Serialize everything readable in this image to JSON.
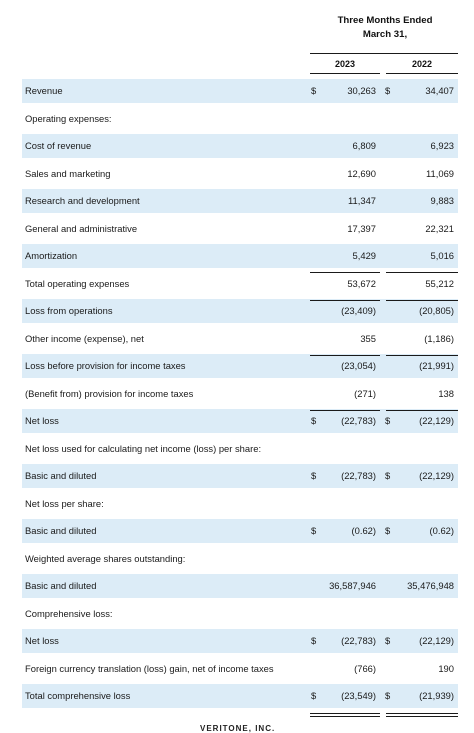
{
  "header": {
    "title_line1": "Three Months Ended",
    "title_line2": "March 31,",
    "year1": "2023",
    "year2": "2022"
  },
  "rows": [
    {
      "label": "Revenue",
      "cur1": "$",
      "v1": "30,263",
      "cur2": "$",
      "v2": "34,407",
      "shaded": true
    },
    {
      "label": "Operating expenses:",
      "cur1": "",
      "v1": "",
      "cur2": "",
      "v2": "",
      "shaded": false
    },
    {
      "label": "Cost of revenue",
      "cur1": "",
      "v1": "6,809",
      "cur2": "",
      "v2": "6,923",
      "shaded": true
    },
    {
      "label": "Sales and marketing",
      "cur1": "",
      "v1": "12,690",
      "cur2": "",
      "v2": "11,069",
      "shaded": false
    },
    {
      "label": "Research and development",
      "cur1": "",
      "v1": "11,347",
      "cur2": "",
      "v2": "9,883",
      "shaded": true
    },
    {
      "label": "General and administrative",
      "cur1": "",
      "v1": "17,397",
      "cur2": "",
      "v2": "22,321",
      "shaded": false
    },
    {
      "label": "Amortization",
      "cur1": "",
      "v1": "5,429",
      "cur2": "",
      "v2": "5,016",
      "shaded": true
    },
    {
      "label": "Total operating expenses",
      "cur1": "",
      "v1": "53,672",
      "cur2": "",
      "v2": "55,212",
      "shaded": false
    },
    {
      "label": "Loss from operations",
      "cur1": "",
      "v1": "(23,409)",
      "cur2": "",
      "v2": "(20,805)",
      "shaded": true
    },
    {
      "label": "Other income (expense), net",
      "cur1": "",
      "v1": "355",
      "cur2": "",
      "v2": "(1,186)",
      "shaded": false
    },
    {
      "label": "Loss before provision for income taxes",
      "cur1": "",
      "v1": "(23,054)",
      "cur2": "",
      "v2": "(21,991)",
      "shaded": true
    },
    {
      "label": "(Benefit from) provision for income taxes",
      "cur1": "",
      "v1": "(271)",
      "cur2": "",
      "v2": "138",
      "shaded": false
    },
    {
      "label": "Net loss",
      "cur1": "$",
      "v1": "(22,783)",
      "cur2": "$",
      "v2": "(22,129)",
      "shaded": true
    },
    {
      "label": "Net loss used for calculating net income (loss) per share:",
      "cur1": "",
      "v1": "",
      "cur2": "",
      "v2": "",
      "shaded": false
    },
    {
      "label": "Basic and diluted",
      "cur1": "$",
      "v1": "(22,783)",
      "cur2": "$",
      "v2": "(22,129)",
      "shaded": true
    },
    {
      "label": "Net loss per share:",
      "cur1": "",
      "v1": "",
      "cur2": "",
      "v2": "",
      "shaded": false
    },
    {
      "label": "Basic and diluted",
      "cur1": "$",
      "v1": "(0.62)",
      "cur2": "$",
      "v2": "(0.62)",
      "shaded": true
    },
    {
      "label": "Weighted average shares outstanding:",
      "cur1": "",
      "v1": "",
      "cur2": "",
      "v2": "",
      "shaded": false
    },
    {
      "label": "Basic and diluted",
      "cur1": "",
      "v1": "36,587,946",
      "cur2": "",
      "v2": "35,476,948",
      "shaded": true
    },
    {
      "label": "Comprehensive loss:",
      "cur1": "",
      "v1": "",
      "cur2": "",
      "v2": "",
      "shaded": false
    },
    {
      "label": "Net loss",
      "cur1": "$",
      "v1": "(22,783)",
      "cur2": "$",
      "v2": "(22,129)",
      "shaded": true
    },
    {
      "label": "Foreign currency translation (loss) gain, net of income taxes",
      "cur1": "",
      "v1": "(766)",
      "cur2": "",
      "v2": "190",
      "shaded": false
    },
    {
      "label": "Total comprehensive loss",
      "cur1": "$",
      "v1": "(23,549)",
      "cur2": "$",
      "v2": "(21,939)",
      "shaded": true
    }
  ],
  "footer": {
    "text": "VERITONE, INC."
  }
}
